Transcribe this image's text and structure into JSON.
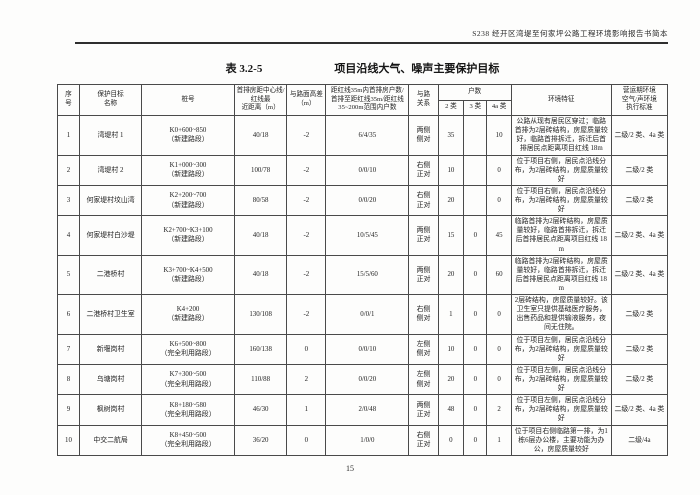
{
  "page": {
    "header_text": "S238 经开区湾堤至何家坪公路工程环境影响报告书简本",
    "footer_page_number": "15"
  },
  "table": {
    "label": "表 3.2-5",
    "title": "项目沿线大气、噪声主要保护目标",
    "headers": {
      "seq": "序\n号",
      "name": "保护目标\n名称",
      "stake": "桩号",
      "distance": "首排房距中心线/\n红线最\n近距离（m）",
      "diff": "与路面高差\n（m）",
      "range": "距红线35m内首排房户数/\n首排至距红线35m/距红线\n35~200m范围内户数",
      "relation": "与路\n关系",
      "households": "户数",
      "c2": "2 类",
      "c3": "3 类",
      "c4a": "4a 类",
      "env": "环境特征",
      "std": "营运期环境\n空气/声环境\n执行标准"
    },
    "column_keys": [
      "seq",
      "name",
      "stake",
      "distance",
      "diff",
      "range",
      "relation",
      "c2",
      "c3",
      "c4a",
      "env",
      "std"
    ],
    "rows": [
      {
        "seq": "1",
        "name": "湾堤村 1",
        "stake": "K0+600~850\n（新建路段）",
        "distance": "40/18",
        "diff": "-2",
        "range": "6/4/35",
        "relation": "两侧\n侧对",
        "c2": "35",
        "c3": "",
        "c4a": "10",
        "env": "公路从现有居民区穿过；临路首排为2层砖结构，房屋质量较好，临路首排拆迁，拆迁后首排居民点距离项目红线 18m",
        "std": "二级/2 类、4a 类"
      },
      {
        "seq": "2",
        "name": "湾堤村 2",
        "stake": "K1+000~300\n（新建路段）",
        "distance": "100/78",
        "diff": "-2",
        "range": "0/0/10",
        "relation": "右侧\n正对",
        "c2": "10",
        "c3": "",
        "c4a": "0",
        "env": "位于项目右侧，居民点沿线分布，为2层砖结构，房屋质量较好",
        "std": "二级/2 类"
      },
      {
        "seq": "3",
        "name": "何家堤村坟山湾",
        "stake": "K2+200~700\n（新建路段）",
        "distance": "80/58",
        "diff": "-2",
        "range": "0/0/20",
        "relation": "右侧\n正对",
        "c2": "20",
        "c3": "",
        "c4a": "0",
        "env": "位于项目右侧，居民点沿线分布，为2层砖结构，房屋质量较好",
        "std": "二级/2 类"
      },
      {
        "seq": "4",
        "name": "何家堤村白沙堤",
        "stake": "K2+700~K3+100\n（新建路段）",
        "distance": "40/18",
        "diff": "-2",
        "range": "10/5/45",
        "relation": "两侧\n正对",
        "c2": "15",
        "c3": "0",
        "c4a": "45",
        "env": "临路首排为2层砖结构，房屋质量较好，临路首排拆迁，拆迁后首排居民点距离项目红线 18m",
        "std": "二级/2 类、4a 类"
      },
      {
        "seq": "5",
        "name": "二港桥村",
        "stake": "K3+700~K4+500\n（新建路段）",
        "distance": "40/18",
        "diff": "-2",
        "range": "15/5/60",
        "relation": "两侧\n正对",
        "c2": "20",
        "c3": "0",
        "c4a": "60",
        "env": "临路首排为2层砖结构，房屋质量较好，临路首排拆迁，拆迁后首排居民点距离项目红线 18m",
        "std": "二级/2 类、4a 类"
      },
      {
        "seq": "6",
        "name": "二港桥村卫生室",
        "stake": "K4+200\n（新建路段）",
        "distance": "130/108",
        "diff": "-2",
        "range": "0/0/1",
        "relation": "右侧\n侧对",
        "c2": "1",
        "c3": "0",
        "c4a": "0",
        "env": "2层砖结构，房屋质量较好。该卫生室只提供基础医疗服务，出售药品和提供输液服务，夜间无住院。",
        "std": "二级/2 类"
      },
      {
        "seq": "7",
        "name": "新堰岗村",
        "stake": "K6+500~800\n（完全利用路段）",
        "distance": "160/138",
        "diff": "0",
        "range": "0/0/10",
        "relation": "左侧\n侧对",
        "c2": "10",
        "c3": "0",
        "c4a": "0",
        "env": "位于项目左侧，居民点沿线分布，为2层砖结构，房屋质量较好",
        "std": "二级/2 类"
      },
      {
        "seq": "8",
        "name": "乌塘岗村",
        "stake": "K7+300~500\n（完全利用路段）",
        "distance": "110/88",
        "diff": "2",
        "range": "0/0/20",
        "relation": "左侧\n侧对",
        "c2": "20",
        "c3": "0",
        "c4a": "0",
        "env": "位于项目左侧，居民点沿线分布，为2层砖结构，房屋质量较好",
        "std": "二级/2 类"
      },
      {
        "seq": "9",
        "name": "枫树岗村",
        "stake": "K8+180~580\n（完全利用路段）",
        "distance": "46/30",
        "diff": "1",
        "range": "2/0/48",
        "relation": "两侧\n正对",
        "c2": "48",
        "c3": "0",
        "c4a": "2",
        "env": "位于项目左侧，居民点沿线分布，为2层砖结构，房屋质量较好",
        "std": "二级/2 类、4a 类"
      },
      {
        "seq": "10",
        "name": "中交二航局",
        "stake": "K8+450~500\n（完全利用路段）",
        "distance": "36/20",
        "diff": "0",
        "range": "1/0/0",
        "relation": "右侧\n正对",
        "c2": "0",
        "c3": "0",
        "c4a": "1",
        "env": "位于项目右侧临路第一排，为1栋6层办公楼，主要功能为办公，房屋质量较好",
        "std": "二级/4a"
      }
    ]
  }
}
